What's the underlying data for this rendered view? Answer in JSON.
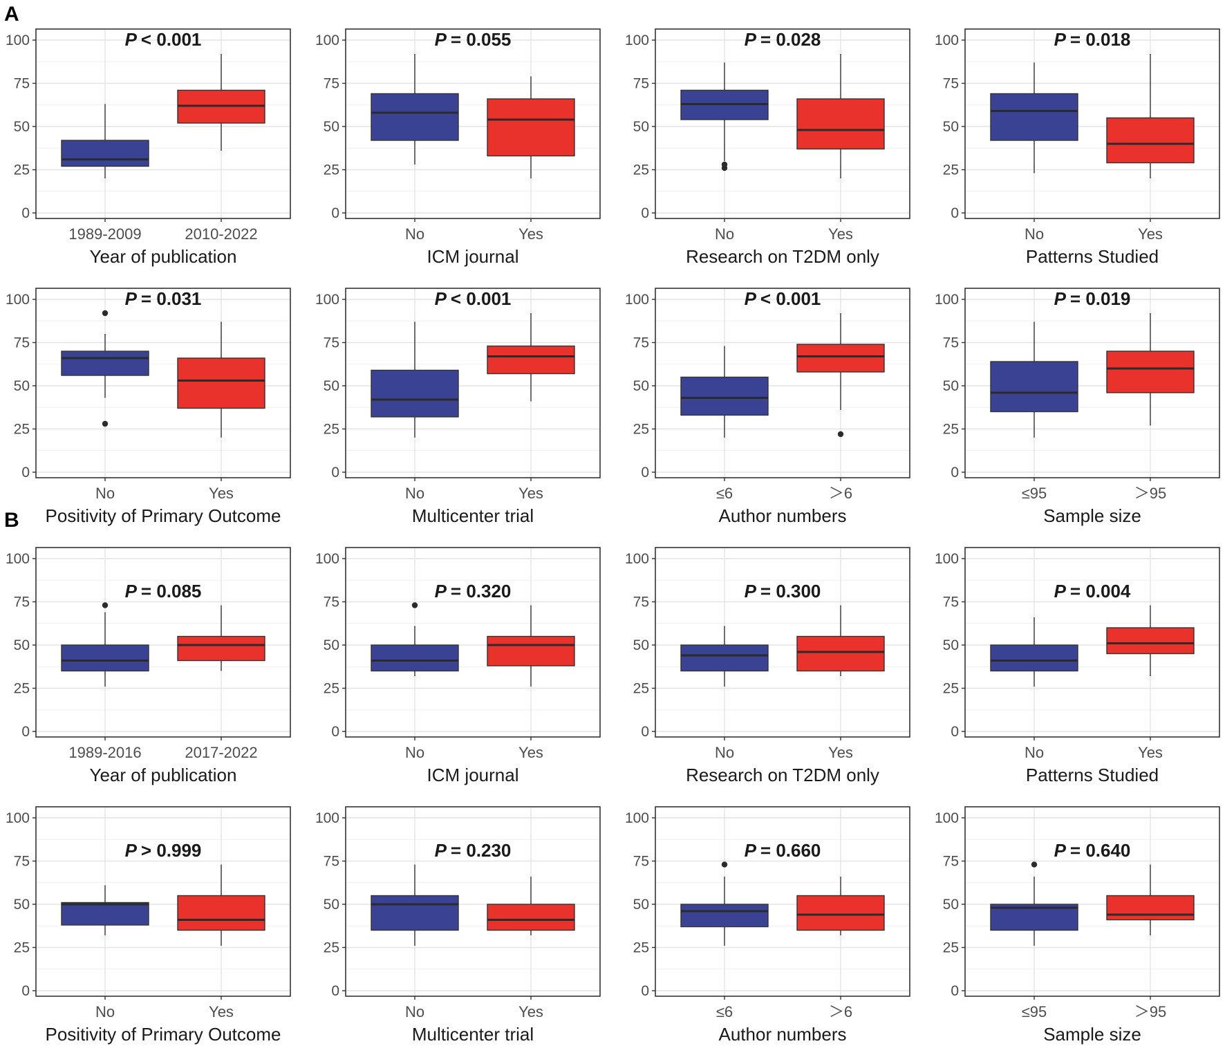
{
  "colors": {
    "no_group": "#3a4393",
    "yes_group": "#e8322b",
    "median": "#2b2b2b",
    "outlier": "#2b2b2b"
  },
  "panels": [
    {
      "letter": "A",
      "rows": [
        0,
        1
      ]
    },
    {
      "letter": "B",
      "rows": [
        2,
        3
      ]
    }
  ],
  "chart_data": [
    {
      "type": "box",
      "panel": "A",
      "xlabel": "Year of publication",
      "p_label": "P",
      "p_value": "< 0.001",
      "p_position": "top",
      "ylim": [
        0,
        100
      ],
      "yticks": [
        0,
        25,
        50,
        75,
        100
      ],
      "groups": [
        {
          "name": "1989-2009",
          "whisker_low": 20,
          "q1": 27,
          "median": 31,
          "q3": 42,
          "whisker_high": 63,
          "outliers": []
        },
        {
          "name": "2010-2022",
          "whisker_low": 36,
          "q1": 52,
          "median": 62,
          "q3": 71,
          "whisker_high": 92,
          "outliers": []
        }
      ]
    },
    {
      "type": "box",
      "panel": "A",
      "xlabel": "ICM journal",
      "p_label": "P",
      "p_value": "= 0.055",
      "p_position": "top",
      "ylim": [
        0,
        100
      ],
      "yticks": [
        0,
        25,
        50,
        75,
        100
      ],
      "groups": [
        {
          "name": "No",
          "whisker_low": 28,
          "q1": 42,
          "median": 58,
          "q3": 69,
          "whisker_high": 92,
          "outliers": []
        },
        {
          "name": "Yes",
          "whisker_low": 20,
          "q1": 33,
          "median": 54,
          "q3": 66,
          "whisker_high": 79,
          "outliers": []
        }
      ]
    },
    {
      "type": "box",
      "panel": "A",
      "xlabel": "Research on T2DM only",
      "p_label": "P",
      "p_value": "= 0.028",
      "p_position": "top",
      "ylim": [
        0,
        100
      ],
      "yticks": [
        0,
        25,
        50,
        75,
        100
      ],
      "groups": [
        {
          "name": "No",
          "whisker_low": 30,
          "q1": 54,
          "median": 63,
          "q3": 71,
          "whisker_high": 87,
          "outliers": [
            26,
            28
          ]
        },
        {
          "name": "Yes",
          "whisker_low": 20,
          "q1": 37,
          "median": 48,
          "q3": 66,
          "whisker_high": 92,
          "outliers": []
        }
      ]
    },
    {
      "type": "box",
      "panel": "A",
      "xlabel": "Patterns Studied",
      "p_label": "P",
      "p_value": "= 0.018",
      "p_position": "top",
      "ylim": [
        0,
        100
      ],
      "yticks": [
        0,
        25,
        50,
        75,
        100
      ],
      "groups": [
        {
          "name": "No",
          "whisker_low": 23,
          "q1": 42,
          "median": 59,
          "q3": 69,
          "whisker_high": 87,
          "outliers": []
        },
        {
          "name": "Yes",
          "whisker_low": 20,
          "q1": 29,
          "median": 40,
          "q3": 55,
          "whisker_high": 92,
          "outliers": []
        }
      ]
    },
    {
      "type": "box",
      "panel": "A",
      "xlabel": "Positivity of Primary Outcome",
      "p_label": "P",
      "p_value": "= 0.031",
      "p_position": "top",
      "ylim": [
        0,
        100
      ],
      "yticks": [
        0,
        25,
        50,
        75,
        100
      ],
      "groups": [
        {
          "name": "No",
          "whisker_low": 43,
          "q1": 56,
          "median": 66,
          "q3": 70,
          "whisker_high": 80,
          "outliers": [
            92,
            28
          ]
        },
        {
          "name": "Yes",
          "whisker_low": 20,
          "q1": 37,
          "median": 53,
          "q3": 66,
          "whisker_high": 87,
          "outliers": []
        }
      ]
    },
    {
      "type": "box",
      "panel": "A",
      "xlabel": "Multicenter trial",
      "p_label": "P",
      "p_value": "< 0.001",
      "p_position": "top",
      "ylim": [
        0,
        100
      ],
      "yticks": [
        0,
        25,
        50,
        75,
        100
      ],
      "groups": [
        {
          "name": "No",
          "whisker_low": 20,
          "q1": 32,
          "median": 42,
          "q3": 59,
          "whisker_high": 87,
          "outliers": []
        },
        {
          "name": "Yes",
          "whisker_low": 41,
          "q1": 57,
          "median": 67,
          "q3": 73,
          "whisker_high": 92,
          "outliers": []
        }
      ]
    },
    {
      "type": "box",
      "panel": "A",
      "xlabel": "Author numbers",
      "p_label": "P",
      "p_value": "< 0.001",
      "p_position": "top",
      "ylim": [
        0,
        100
      ],
      "yticks": [
        0,
        25,
        50,
        75,
        100
      ],
      "groups": [
        {
          "name": "≤6",
          "whisker_low": 20,
          "q1": 33,
          "median": 43,
          "q3": 55,
          "whisker_high": 73,
          "outliers": []
        },
        {
          "name": "＞6",
          "whisker_low": 36,
          "q1": 58,
          "median": 67,
          "q3": 74,
          "whisker_high": 92,
          "outliers": [
            22
          ]
        }
      ]
    },
    {
      "type": "box",
      "panel": "A",
      "xlabel": "Sample size",
      "p_label": "P",
      "p_value": "= 0.019",
      "p_position": "top",
      "ylim": [
        0,
        100
      ],
      "yticks": [
        0,
        25,
        50,
        75,
        100
      ],
      "groups": [
        {
          "name": "≤95",
          "whisker_low": 20,
          "q1": 35,
          "median": 46,
          "q3": 64,
          "whisker_high": 87,
          "outliers": []
        },
        {
          "name": "＞95",
          "whisker_low": 27,
          "q1": 46,
          "median": 60,
          "q3": 70,
          "whisker_high": 92,
          "outliers": []
        }
      ]
    },
    {
      "type": "box",
      "panel": "B",
      "xlabel": "Year of publication",
      "p_label": "P",
      "p_value": "= 0.085",
      "p_position": "mid",
      "ylim": [
        0,
        100
      ],
      "yticks": [
        0,
        25,
        50,
        75,
        100
      ],
      "groups": [
        {
          "name": "1989-2016",
          "whisker_low": 26,
          "q1": 35,
          "median": 41,
          "q3": 50,
          "whisker_high": 69,
          "outliers": [
            73
          ]
        },
        {
          "name": "2017-2022",
          "whisker_low": 35,
          "q1": 41,
          "median": 50,
          "q3": 55,
          "whisker_high": 73,
          "outliers": []
        }
      ]
    },
    {
      "type": "box",
      "panel": "B",
      "xlabel": "ICM journal",
      "p_label": "P",
      "p_value": "= 0.320",
      "p_position": "mid",
      "ylim": [
        0,
        100
      ],
      "yticks": [
        0,
        25,
        50,
        75,
        100
      ],
      "groups": [
        {
          "name": "No",
          "whisker_low": 32,
          "q1": 35,
          "median": 41,
          "q3": 50,
          "whisker_high": 61,
          "outliers": [
            73
          ]
        },
        {
          "name": "Yes",
          "whisker_low": 26,
          "q1": 38,
          "median": 50,
          "q3": 55,
          "whisker_high": 73,
          "outliers": []
        }
      ]
    },
    {
      "type": "box",
      "panel": "B",
      "xlabel": "Research on T2DM only",
      "p_label": "P",
      "p_value": "= 0.300",
      "p_position": "mid",
      "ylim": [
        0,
        100
      ],
      "yticks": [
        0,
        25,
        50,
        75,
        100
      ],
      "groups": [
        {
          "name": "No",
          "whisker_low": 26,
          "q1": 35,
          "median": 44,
          "q3": 50,
          "whisker_high": 61,
          "outliers": []
        },
        {
          "name": "Yes",
          "whisker_low": 32,
          "q1": 35,
          "median": 46,
          "q3": 55,
          "whisker_high": 73,
          "outliers": []
        }
      ]
    },
    {
      "type": "box",
      "panel": "B",
      "xlabel": "Patterns Studied",
      "p_label": "P",
      "p_value": "= 0.004",
      "p_position": "mid",
      "ylim": [
        0,
        100
      ],
      "yticks": [
        0,
        25,
        50,
        75,
        100
      ],
      "groups": [
        {
          "name": "No",
          "whisker_low": 26,
          "q1": 35,
          "median": 41,
          "q3": 50,
          "whisker_high": 66,
          "outliers": []
        },
        {
          "name": "Yes",
          "whisker_low": 32,
          "q1": 45,
          "median": 51,
          "q3": 60,
          "whisker_high": 73,
          "outliers": []
        }
      ]
    },
    {
      "type": "box",
      "panel": "B",
      "xlabel": "Positivity of Primary Outcome",
      "p_label": "P",
      "p_value": "> 0.999",
      "p_position": "mid",
      "ylim": [
        0,
        100
      ],
      "yticks": [
        0,
        25,
        50,
        75,
        100
      ],
      "groups": [
        {
          "name": "No",
          "whisker_low": 32,
          "q1": 38,
          "median": 50,
          "q3": 51,
          "whisker_high": 61,
          "outliers": []
        },
        {
          "name": "Yes",
          "whisker_low": 26,
          "q1": 35,
          "median": 41,
          "q3": 55,
          "whisker_high": 73,
          "outliers": []
        }
      ]
    },
    {
      "type": "box",
      "panel": "B",
      "xlabel": "Multicenter trial",
      "p_label": "P",
      "p_value": "= 0.230",
      "p_position": "mid",
      "ylim": [
        0,
        100
      ],
      "yticks": [
        0,
        25,
        50,
        75,
        100
      ],
      "groups": [
        {
          "name": "No",
          "whisker_low": 26,
          "q1": 35,
          "median": 50,
          "q3": 55,
          "whisker_high": 73,
          "outliers": []
        },
        {
          "name": "Yes",
          "whisker_low": 32,
          "q1": 35,
          "median": 41,
          "q3": 50,
          "whisker_high": 66,
          "outliers": []
        }
      ]
    },
    {
      "type": "box",
      "panel": "B",
      "xlabel": "Author numbers",
      "p_label": "P",
      "p_value": "= 0.660",
      "p_position": "mid",
      "ylim": [
        0,
        100
      ],
      "yticks": [
        0,
        25,
        50,
        75,
        100
      ],
      "groups": [
        {
          "name": "≤6",
          "whisker_low": 26,
          "q1": 37,
          "median": 46,
          "q3": 50,
          "whisker_high": 66,
          "outliers": [
            73
          ]
        },
        {
          "name": "＞6",
          "whisker_low": 32,
          "q1": 35,
          "median": 44,
          "q3": 55,
          "whisker_high": 66,
          "outliers": []
        }
      ]
    },
    {
      "type": "box",
      "panel": "B",
      "xlabel": "Sample size",
      "p_label": "P",
      "p_value": "= 0.640",
      "p_position": "mid",
      "ylim": [
        0,
        100
      ],
      "yticks": [
        0,
        25,
        50,
        75,
        100
      ],
      "groups": [
        {
          "name": "≤95",
          "whisker_low": 26,
          "q1": 35,
          "median": 48,
          "q3": 50,
          "whisker_high": 66,
          "outliers": [
            73
          ]
        },
        {
          "name": "＞95",
          "whisker_low": 32,
          "q1": 41,
          "median": 44,
          "q3": 55,
          "whisker_high": 73,
          "outliers": []
        }
      ]
    }
  ]
}
